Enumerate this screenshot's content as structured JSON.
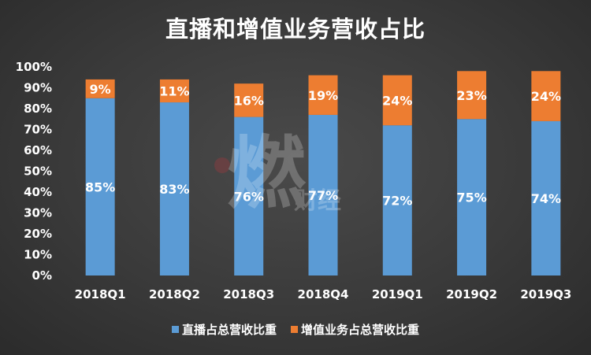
{
  "chart_data": {
    "type": "bar",
    "stacked": true,
    "title": "直播和增值业务营收占比",
    "categories": [
      "2018Q1",
      "2018Q2",
      "2018Q3",
      "2018Q4",
      "2019Q1",
      "2019Q2",
      "2019Q3"
    ],
    "series": [
      {
        "name": "直播占总营收比重",
        "values": [
          85,
          83,
          76,
          77,
          72,
          75,
          74
        ],
        "color": "#5b9bd5"
      },
      {
        "name": "增值业务占总营收比重",
        "values": [
          9,
          11,
          16,
          19,
          24,
          23,
          24
        ],
        "color": "#ed7d31"
      }
    ],
    "y_ticks": [
      "0%",
      "10%",
      "20%",
      "30%",
      "40%",
      "50%",
      "60%",
      "70%",
      "80%",
      "90%",
      "100%"
    ],
    "ylim": [
      0,
      100
    ],
    "value_suffix": "%",
    "grid": false,
    "legend_position": "bottom",
    "watermark_logo": "燃财经"
  }
}
